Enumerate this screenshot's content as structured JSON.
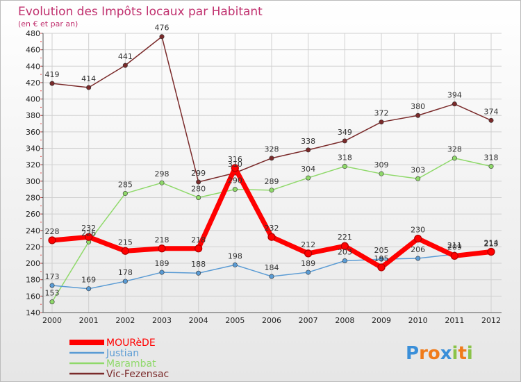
{
  "chart_data": {
    "type": "line",
    "title": "Evolution des Impôts locaux par Habitant",
    "subtitle": "(en € et par an)",
    "x": [
      "2000",
      "2001",
      "2002",
      "2003",
      "2004",
      "2005",
      "2006",
      "2007",
      "2008",
      "2009",
      "2010",
      "2011",
      "2012"
    ],
    "ylim": [
      140,
      480
    ],
    "yticks": [
      140,
      160,
      180,
      200,
      220,
      240,
      260,
      280,
      300,
      320,
      340,
      360,
      380,
      400,
      420,
      440,
      460,
      480
    ],
    "grid": true,
    "legend_position": "bottom-left",
    "series": [
      {
        "name": "Vic-Fezensac",
        "color": "#7a2a2a",
        "values": [
          419,
          414,
          441,
          476,
          299,
          310,
          328,
          338,
          349,
          372,
          380,
          394,
          374
        ]
      },
      {
        "name": "Marambat",
        "color": "#8fd96a",
        "values": [
          153,
          226,
          285,
          298,
          280,
          290,
          289,
          304,
          318,
          309,
          303,
          328,
          318
        ]
      },
      {
        "name": "Justian",
        "color": "#5a9bd4",
        "values": [
          173,
          169,
          178,
          189,
          188,
          198,
          184,
          189,
          203,
          205,
          206,
          211,
          213
        ]
      },
      {
        "name": "MOURèDE",
        "color": "#ff0000",
        "values": [
          228,
          232,
          215,
          218,
          218,
          316,
          232,
          212,
          221,
          195,
          230,
          209,
          214
        ]
      }
    ],
    "legend": [
      "MOURèDE",
      "Justian",
      "Marambat",
      "Vic-Fezensac"
    ]
  },
  "branding": {
    "logo": "Proxiti"
  }
}
